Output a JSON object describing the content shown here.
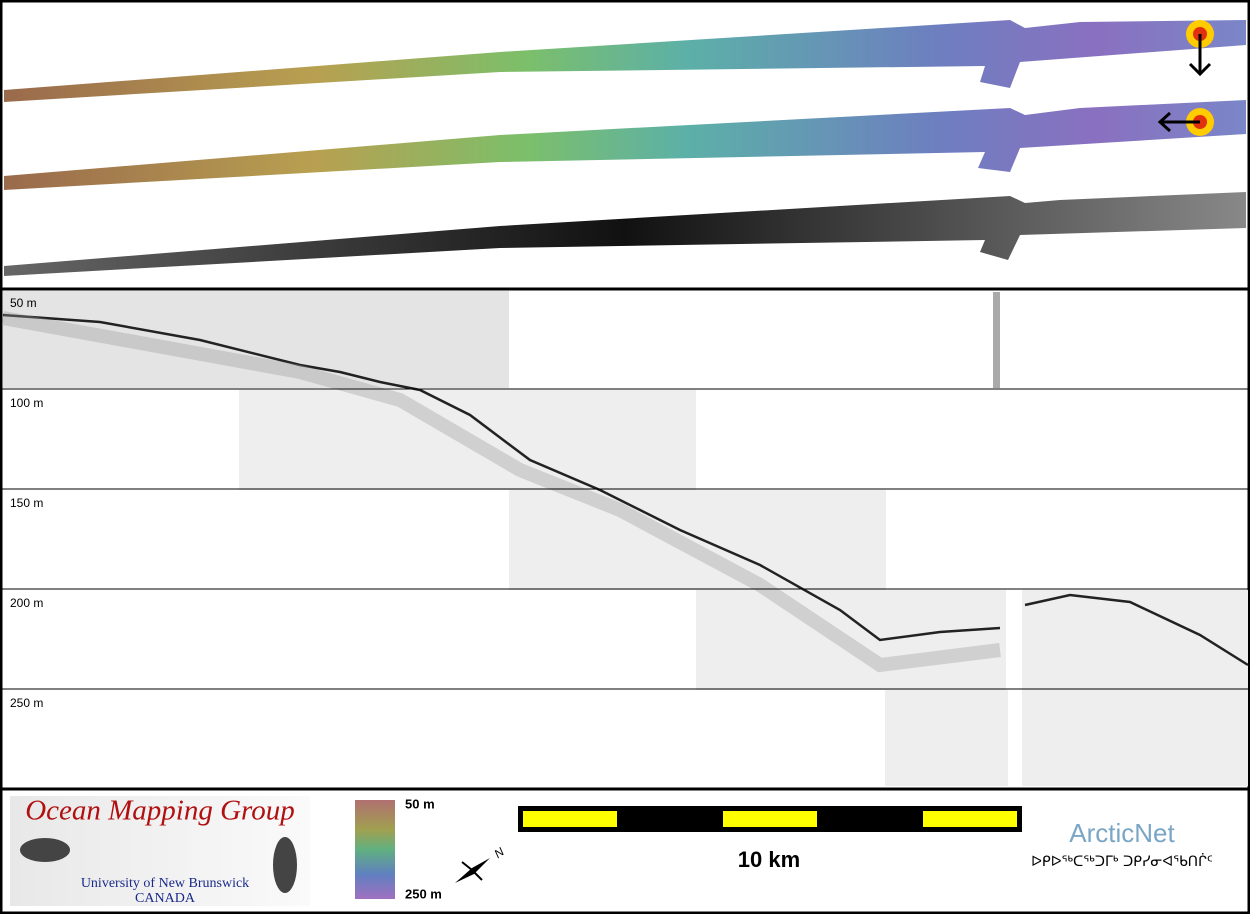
{
  "profile": {
    "depth_labels": [
      "50 m",
      "100 m",
      "150 m",
      "200 m",
      "250 m"
    ]
  },
  "legend": {
    "top_label": "50 m",
    "bottom_label": "250 m",
    "north": "N",
    "scale": "10 km"
  },
  "logo": {
    "title": "Ocean Mapping Group",
    "university": "University of New Brunswick",
    "country": "CANADA"
  },
  "partner": {
    "name": "ArcticNet",
    "syllabics": "ᐅᑭᐅᖅᑕᖅᑐᒥᒃ ᑐᑭᓯᓂᐊᖃᑎᒌᑦ"
  }
}
